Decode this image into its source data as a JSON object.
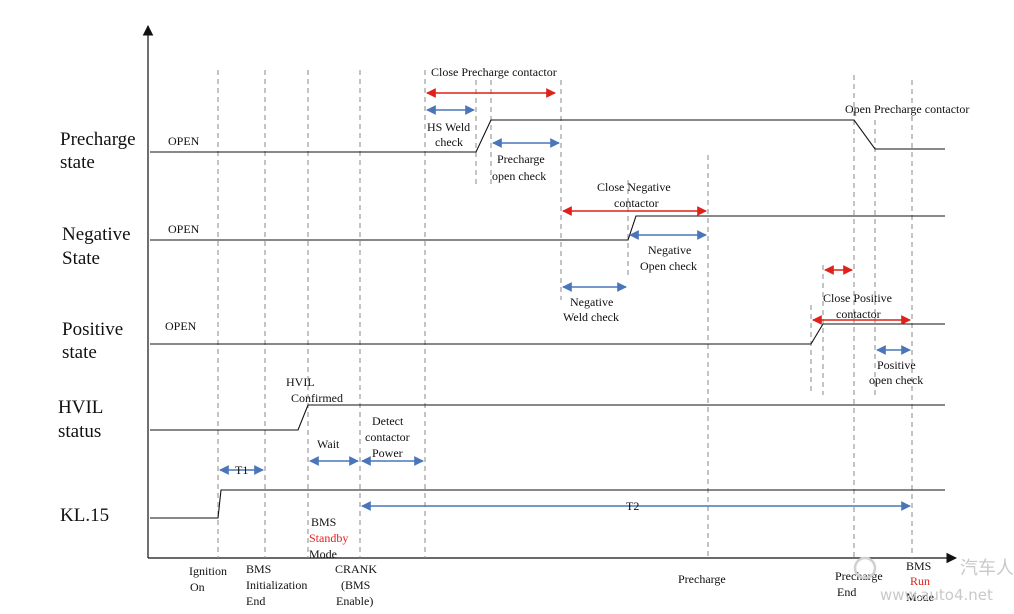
{
  "signals": {
    "precharge_1": "Precharge",
    "precharge_2": "state",
    "negative_1": "Negative",
    "negative_2": "State",
    "positive_1": "Positive",
    "positive_2": "state",
    "hvil_1": "HVIL",
    "hvil_2": "status",
    "kl15": "KL.15"
  },
  "open_labels": {
    "precharge": "OPEN",
    "negative": "OPEN",
    "positive": "OPEN"
  },
  "annotations": {
    "close_precharge": "Close Precharge contactor",
    "hs_weld_1": "HS Weld",
    "hs_weld_2": "check",
    "precharge_open_1": "Precharge",
    "precharge_open_2": "open check",
    "open_precharge": "Open Precharge contactor",
    "close_negative_1": "Close Negative",
    "close_negative_2": "contactor",
    "negative_open_1": "Negative",
    "negative_open_2": "Open check",
    "negative_weld_1": "Negative",
    "negative_weld_2": "Weld check",
    "close_positive_1": "Close Positive",
    "close_positive_2": "contactor",
    "positive_open_1": "Positive",
    "positive_open_2": "open check",
    "hvil_confirmed_1": "HVIL",
    "hvil_confirmed_2": "Confirmed",
    "wait": "Wait",
    "detect_1": "Detect",
    "detect_2": "contactor",
    "detect_3": "Power",
    "t1": "T1",
    "t2": "T2",
    "bms_standby_1": "BMS",
    "bms_standby_2": "Standby",
    "bms_standby_3": "Mode"
  },
  "events": {
    "ignition_1": "Ignition",
    "ignition_2": "On",
    "bms_init_1": "BMS",
    "bms_init_2": "Initialization",
    "bms_init_3": "End",
    "crank_1": "CRANK",
    "crank_2": "(BMS",
    "crank_3": "Enable)",
    "precharge": "Precharge",
    "precharge_end_1": "Precharge",
    "precharge_end_2": "End",
    "bms_run_1": "BMS",
    "bms_run_2": "Run",
    "bms_run_3": "Mode"
  },
  "watermark": {
    "brand": "汽车人",
    "url": "www.auto4.net"
  },
  "colors": {
    "blue_arrow": "#4a76b9",
    "red_arrow": "#e0201a",
    "red_text": "#e0201a"
  }
}
